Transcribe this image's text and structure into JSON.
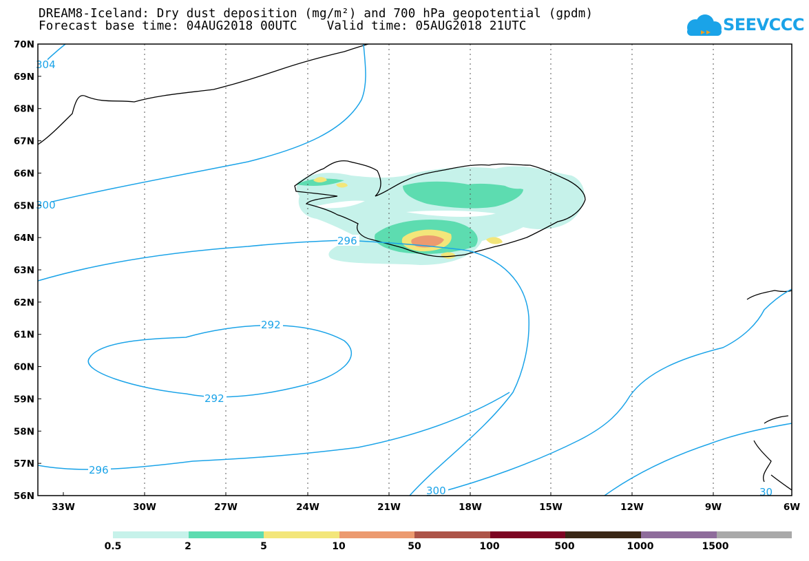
{
  "title_line1": "DREAM8-Iceland: Dry dust deposition (mg/m²) and 700 hPa geopotential (gpdm)",
  "title_line2": "Forecast base time: 04AUG2018 00UTC    Valid time: 05AUG2018 21UTC",
  "logo_text": "SEEVCCC",
  "lat_labels": [
    "70N",
    "69N",
    "68N",
    "67N",
    "66N",
    "65N",
    "64N",
    "63N",
    "62N",
    "61N",
    "60N",
    "59N",
    "58N",
    "57N",
    "56N"
  ],
  "lon_labels": [
    "33W",
    "30W",
    "27W",
    "24W",
    "21W",
    "18W",
    "15W",
    "12W",
    "9W",
    "6W"
  ],
  "contour_labels": {
    "c304": "304",
    "c300a": "300",
    "c296a": "296",
    "c292a": "292",
    "c292b": "292",
    "c296b": "296",
    "c300b": "300",
    "c300c": "30"
  },
  "legend": {
    "labels": [
      "0.5",
      "2",
      "5",
      "10",
      "50",
      "100",
      "500",
      "1000",
      "1500"
    ],
    "colors": [
      "#c6f2ea",
      "#5ddcb0",
      "#f3e67a",
      "#ec9a6f",
      "#ad5448",
      "#7d0422",
      "#3a2715",
      "#8e6c9b",
      "#a9a9a9"
    ]
  },
  "colors": {
    "contour": "#1aa3e8",
    "brand": "#1aa3e8"
  }
}
